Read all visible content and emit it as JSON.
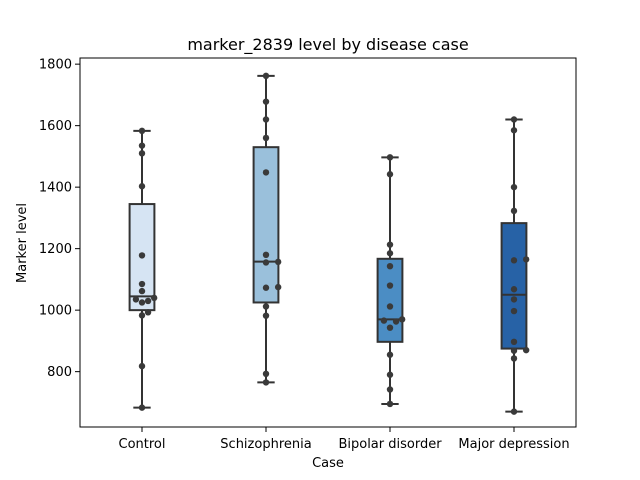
{
  "chart_data": {
    "type": "box",
    "title": "marker_2839 level by disease case",
    "xlabel": "Case",
    "ylabel": "Marker level",
    "ylim": [
      620,
      1820
    ],
    "yticks": [
      800,
      1000,
      1200,
      1400,
      1600,
      1800
    ],
    "categories": [
      "Control",
      "Schizophrenia",
      "Bipolar disorder",
      "Major depression"
    ],
    "box_colors": [
      "#d6e4f3",
      "#9ac0db",
      "#4b8dc4",
      "#2762a6"
    ],
    "boxes": [
      {
        "category": "Control",
        "whisker_low": 683,
        "q1": 1000,
        "median": 1045,
        "q3": 1345,
        "whisker_high": 1583
      },
      {
        "category": "Schizophrenia",
        "whisker_low": 765,
        "q1": 1025,
        "median": 1158,
        "q3": 1530,
        "whisker_high": 1762
      },
      {
        "category": "Bipolar disorder",
        "whisker_low": 695,
        "q1": 897,
        "median": 970,
        "q3": 1167,
        "whisker_high": 1497
      },
      {
        "category": "Major depression",
        "whisker_low": 670,
        "q1": 875,
        "median": 1050,
        "q3": 1283,
        "whisker_high": 1620
      }
    ],
    "points": [
      {
        "category": "Control",
        "values": [
          683,
          818,
          983,
          993,
          1025,
          1030,
          1035,
          1040,
          1062,
          1085,
          1178,
          1403,
          1510,
          1535,
          1583
        ]
      },
      {
        "category": "Schizophrenia",
        "values": [
          765,
          793,
          982,
          1012,
          1073,
          1075,
          1155,
          1157,
          1180,
          1448,
          1560,
          1620,
          1678,
          1762
        ]
      },
      {
        "category": "Bipolar disorder",
        "values": [
          695,
          742,
          790,
          855,
          943,
          963,
          966,
          970,
          1012,
          1080,
          1143,
          1185,
          1213,
          1442,
          1497
        ]
      },
      {
        "category": "Major depression",
        "values": [
          670,
          843,
          868,
          870,
          897,
          997,
          1035,
          1068,
          1162,
          1165,
          1323,
          1400,
          1585,
          1620
        ]
      }
    ]
  }
}
